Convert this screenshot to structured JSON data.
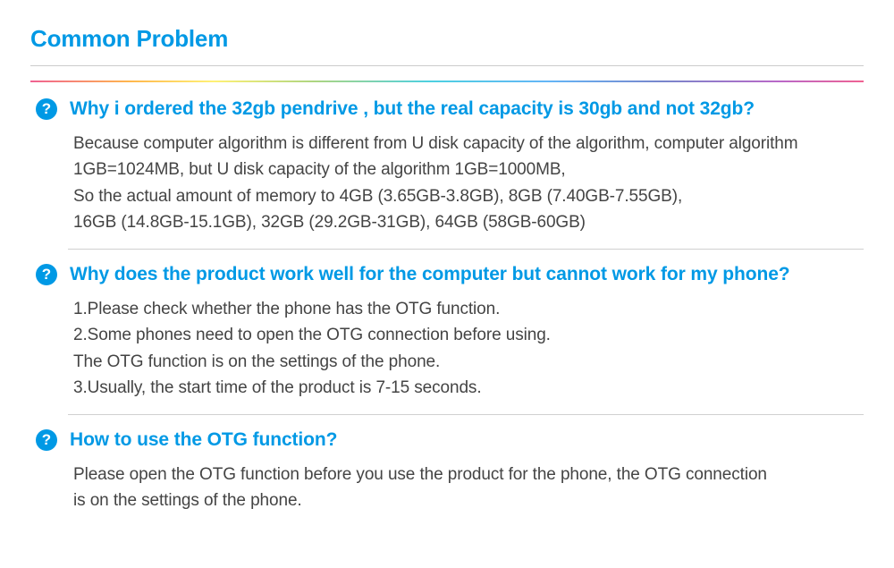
{
  "colors": {
    "accent": "#0099e5",
    "body_text": "#444444",
    "divider": "#d0d0d0",
    "title_underline": "#cccccc",
    "background": "#ffffff",
    "rainbow_stops": [
      "#e91e63",
      "#ff9800",
      "#ffeb3b",
      "#8bc34a",
      "#00bcd4",
      "#2196f3",
      "#3f51b5",
      "#9c27b0",
      "#e91e63"
    ]
  },
  "typography": {
    "title_fontsize": 26,
    "question_fontsize": 21,
    "answer_fontsize": 19,
    "font_family": "Arial"
  },
  "title": "Common Problem",
  "faq": [
    {
      "icon": "?",
      "question": "Why i ordered the 32gb pendrive , but the real capacity is 30gb and not 32gb?",
      "answer": "Because computer algorithm is different from U disk capacity of the algorithm, computer algorithm\n1GB=1024MB, but U disk capacity of the algorithm 1GB=1000MB,\nSo the actual amount of memory to 4GB (3.65GB-3.8GB), 8GB (7.40GB-7.55GB),\n16GB (14.8GB-15.1GB), 32GB (29.2GB-31GB), 64GB (58GB-60GB)"
    },
    {
      "icon": "?",
      "question": "Why does the product work well for the computer but cannot work for my phone?",
      "answer": "1.Please check whether the phone has the OTG function.\n2.Some phones need to open the OTG connection before using.\n   The OTG function is on the settings of the phone.\n3.Usually, the start time of the product is 7-15 seconds."
    },
    {
      "icon": "?",
      "question": "How to use the OTG function?",
      "answer": "Please open the OTG function before you use the product for the phone, the OTG connection\nis on the settings of the phone."
    }
  ]
}
